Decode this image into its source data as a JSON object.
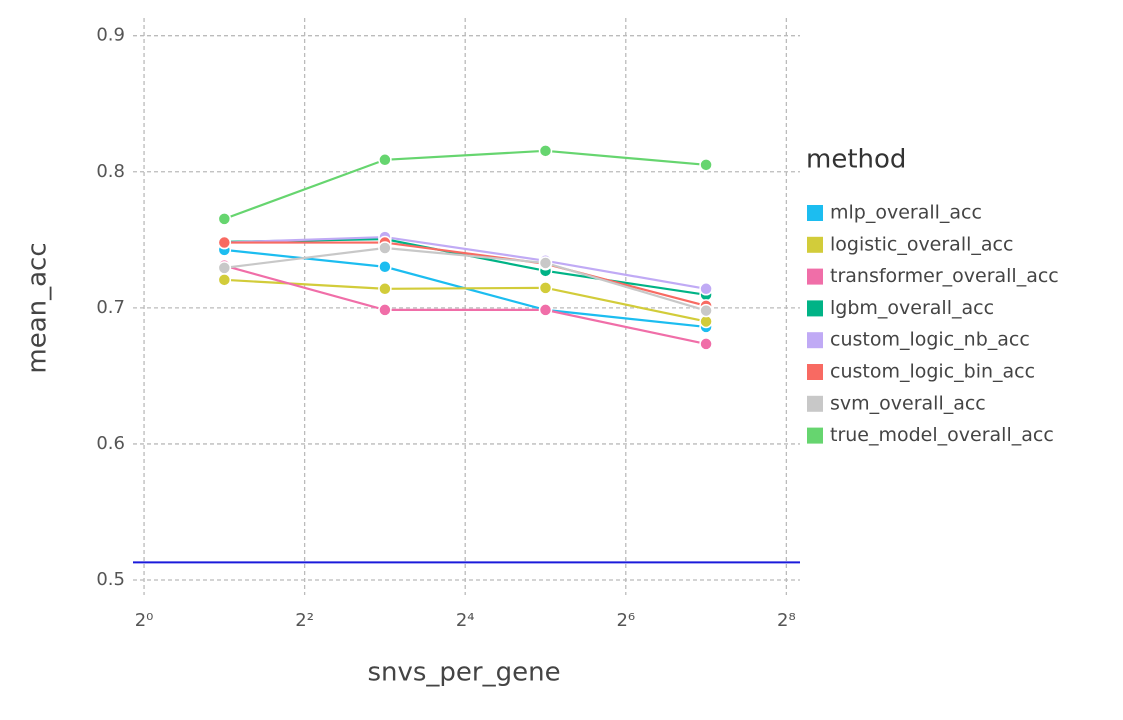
{
  "chart_data": {
    "type": "line",
    "x_label": "snvs_per_gene",
    "y_label": "mean_acc",
    "x": [
      2,
      8,
      32,
      128
    ],
    "xscale": "log2",
    "xlim": [
      0.909,
      288
    ],
    "ylim": [
      0.489,
      0.913
    ],
    "xticks": [
      {
        "value": 1,
        "label": "2⁰"
      },
      {
        "value": 4,
        "label": "2²"
      },
      {
        "value": 16,
        "label": "2⁴"
      },
      {
        "value": 64,
        "label": "2⁶"
      },
      {
        "value": 256,
        "label": "2⁸"
      }
    ],
    "yticks": [
      0.5,
      0.6,
      0.7,
      0.8,
      0.9
    ],
    "grid": true,
    "legend_title": "method",
    "legend_position": "right",
    "reference_line": {
      "value": 0.513,
      "color": "#1a1adb"
    },
    "series": [
      {
        "name": "mlp_overall_acc",
        "color": "#1cbdf0",
        "values": [
          0.7426,
          0.7302,
          0.6985,
          0.686
        ]
      },
      {
        "name": "logistic_overall_acc",
        "color": "#d2cc3a",
        "values": [
          0.7206,
          0.714,
          0.7147,
          0.69
        ]
      },
      {
        "name": "transformer_overall_acc",
        "color": "#f06ea8",
        "values": [
          0.731,
          0.6985,
          0.6985,
          0.6735
        ]
      },
      {
        "name": "lgbm_overall_acc",
        "color": "#00b386",
        "values": [
          0.7485,
          0.7505,
          0.7272,
          0.7096
        ]
      },
      {
        "name": "custom_logic_nb_acc",
        "color": "#c0aaf5",
        "values": [
          0.748,
          0.752,
          0.7346,
          0.714
        ]
      },
      {
        "name": "custom_logic_bin_acc",
        "color": "#f86a62",
        "values": [
          0.748,
          0.748,
          0.7324,
          0.7015
        ]
      },
      {
        "name": "svm_overall_acc",
        "color": "#c8c8c8",
        "values": [
          0.7294,
          0.744,
          0.733,
          0.698
        ]
      },
      {
        "name": "true_model_overall_acc",
        "color": "#66d56f",
        "values": [
          0.7654,
          0.8088,
          0.8154,
          0.8051
        ]
      }
    ]
  }
}
